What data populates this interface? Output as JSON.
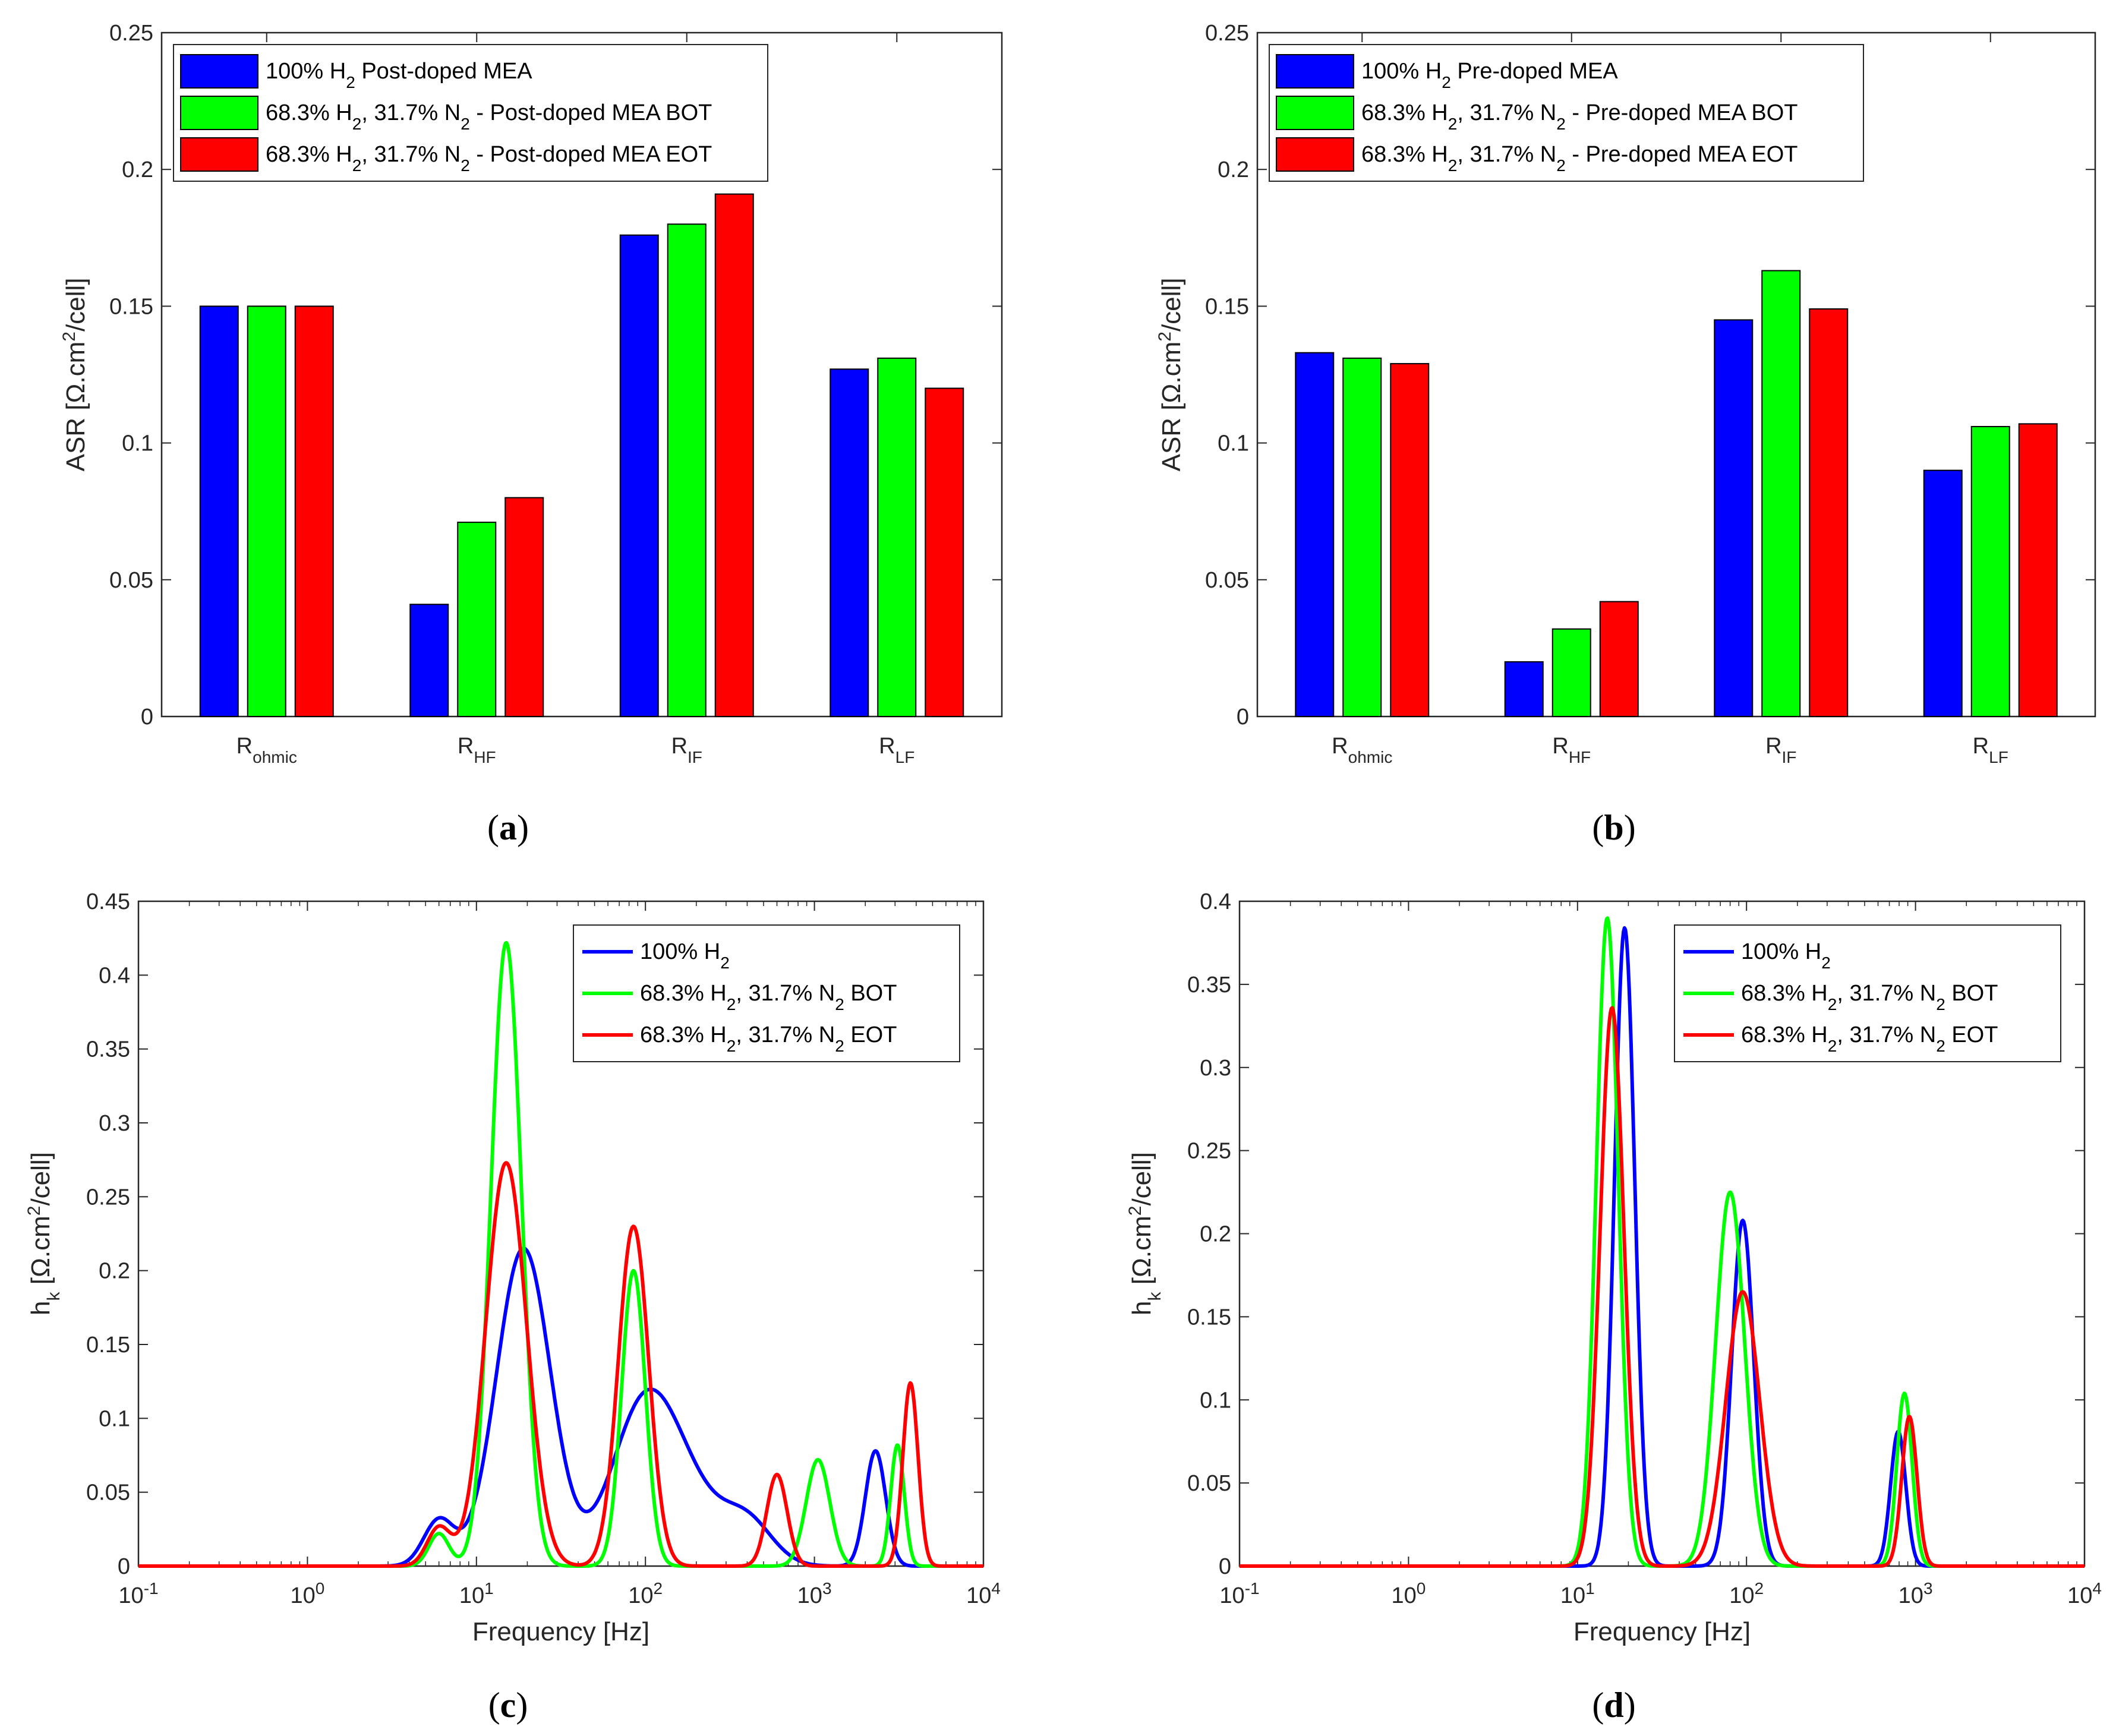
{
  "chart_data": [
    {
      "panel": "a",
      "caption": "(a)",
      "type": "bar",
      "ylabel": "ASR [Ω.cm²/cell]",
      "ylim": [
        0,
        0.25
      ],
      "yticks": [
        "0",
        "0.05",
        "0.1",
        "0.15",
        "0.2",
        "0.25"
      ],
      "categories": [
        {
          "base": "R",
          "sub": "ohmic"
        },
        {
          "base": "R",
          "sub": "HF"
        },
        {
          "base": "R",
          "sub": "IF"
        },
        {
          "base": "R",
          "sub": "LF"
        }
      ],
      "series": [
        {
          "name": "100% H2 Post-doped MEA",
          "label_parts": [
            "100% H",
            "2",
            " Post-doped MEA"
          ],
          "color": "#0000ff",
          "values": [
            0.15,
            0.041,
            0.176,
            0.127
          ]
        },
        {
          "name": "68.3% H2, 31.7% N2 - Post-doped MEA BOT",
          "label_parts": [
            "68.3% H",
            "2",
            ", 31.7% N",
            "2",
            " - Post-doped MEA BOT"
          ],
          "color": "#00ff00",
          "values": [
            0.15,
            0.071,
            0.18,
            0.131
          ]
        },
        {
          "name": "68.3% H2, 31.7% N2 - Post-doped MEA EOT",
          "label_parts": [
            "68.3% H",
            "2",
            ", 31.7% N",
            "2",
            " - Post-doped MEA EOT"
          ],
          "color": "#ff0000",
          "values": [
            0.15,
            0.08,
            0.191,
            0.12
          ]
        }
      ],
      "legend": "top-left"
    },
    {
      "panel": "b",
      "caption": "(b)",
      "type": "bar",
      "ylabel": "ASR [Ω.cm²/cell]",
      "ylim": [
        0,
        0.25
      ],
      "yticks": [
        "0",
        "0.05",
        "0.1",
        "0.15",
        "0.2",
        "0.25"
      ],
      "categories": [
        {
          "base": "R",
          "sub": "ohmic"
        },
        {
          "base": "R",
          "sub": "HF"
        },
        {
          "base": "R",
          "sub": "IF"
        },
        {
          "base": "R",
          "sub": "LF"
        }
      ],
      "series": [
        {
          "name": "100% H2 Pre-doped MEA",
          "label_parts": [
            "100% H",
            "2",
            " Pre-doped MEA"
          ],
          "color": "#0000ff",
          "values": [
            0.133,
            0.02,
            0.145,
            0.09
          ]
        },
        {
          "name": "68.3% H2, 31.7% N2 - Pre-doped MEA BOT",
          "label_parts": [
            "68.3% H",
            "2",
            ", 31.7% N",
            "2",
            " - Pre-doped MEA BOT"
          ],
          "color": "#00ff00",
          "values": [
            0.131,
            0.032,
            0.163,
            0.106
          ]
        },
        {
          "name": "68.3% H2, 31.7% N2 - Pre-doped MEA EOT",
          "label_parts": [
            "68.3% H",
            "2",
            ", 31.7% N",
            "2",
            " - Pre-doped MEA EOT"
          ],
          "color": "#ff0000",
          "values": [
            0.129,
            0.042,
            0.149,
            0.107
          ]
        }
      ],
      "legend": "top-left"
    },
    {
      "panel": "c",
      "caption": "(c)",
      "type": "line",
      "xscale": "log",
      "xlabel": "Frequency [Hz]",
      "ylabel": "h_k [Ω.cm²/cell]",
      "xlim": [
        0.1,
        10000
      ],
      "ylim": [
        0,
        0.45
      ],
      "xticks": [
        {
          "base": "10",
          "exp": "-1"
        },
        {
          "base": "10",
          "exp": "0"
        },
        {
          "base": "10",
          "exp": "1"
        },
        {
          "base": "10",
          "exp": "2"
        },
        {
          "base": "10",
          "exp": "3"
        },
        {
          "base": "10",
          "exp": "4"
        }
      ],
      "yticks": [
        "0",
        "0.05",
        "0.1",
        "0.15",
        "0.2",
        "0.25",
        "0.3",
        "0.35",
        "0.4",
        "0.45"
      ],
      "series": [
        {
          "name": "100% H2",
          "label_parts": [
            "100% H",
            "2"
          ],
          "color": "#0000ff",
          "peaks": [
            [
              6.0,
              0.031,
              0.09
            ],
            [
              19,
              0.215,
              0.16
            ],
            [
              95,
              0.096,
              0.19
            ],
            [
              170,
              0.045,
              0.2
            ],
            [
              400,
              0.029,
              0.15
            ],
            [
              2300,
              0.078,
              0.06
            ]
          ]
        },
        {
          "name": "68.3% H2, 31.7% N2 BOT",
          "label_parts": [
            "68.3% H",
            "2",
            ", 31.7% N",
            "2",
            " BOT"
          ],
          "color": "#00ff00",
          "peaks": [
            [
              6.0,
              0.022,
              0.06
            ],
            [
              15,
              0.422,
              0.09
            ],
            [
              85,
              0.2,
              0.07
            ],
            [
              1050,
              0.072,
              0.07
            ],
            [
              3100,
              0.082,
              0.04
            ]
          ]
        },
        {
          "name": "68.3% H2, 31.7% N2 EOT",
          "label_parts": [
            "68.3% H",
            "2",
            ", 31.7% N",
            "2",
            " EOT"
          ],
          "color": "#ff0000",
          "peaks": [
            [
              6.0,
              0.026,
              0.07
            ],
            [
              15,
              0.273,
              0.12
            ],
            [
              85,
              0.23,
              0.09
            ],
            [
              600,
              0.062,
              0.06
            ],
            [
              3700,
              0.124,
              0.045
            ]
          ]
        }
      ],
      "legend": "top-right"
    },
    {
      "panel": "d",
      "caption": "(d)",
      "type": "line",
      "xscale": "log",
      "xlabel": "Frequency [Hz]",
      "ylabel": "h_k [Ω.cm²/cell]",
      "xlim": [
        0.1,
        10000
      ],
      "ylim": [
        0,
        0.4
      ],
      "xticks": [
        {
          "base": "10",
          "exp": "-1"
        },
        {
          "base": "10",
          "exp": "0"
        },
        {
          "base": "10",
          "exp": "1"
        },
        {
          "base": "10",
          "exp": "2"
        },
        {
          "base": "10",
          "exp": "3"
        },
        {
          "base": "10",
          "exp": "4"
        }
      ],
      "yticks": [
        "0",
        "0.05",
        "0.1",
        "0.15",
        "0.2",
        "0.25",
        "0.3",
        "0.35",
        "0.4"
      ],
      "series": [
        {
          "name": "100% H2",
          "label_parts": [
            "100% H",
            "2"
          ],
          "color": "#0000ff",
          "peaks": [
            [
              19,
              0.384,
              0.06
            ],
            [
              95,
              0.208,
              0.065
            ],
            [
              790,
              0.081,
              0.045
            ]
          ]
        },
        {
          "name": "68.3% H2, 31.7% N2 BOT",
          "label_parts": [
            "68.3% H",
            "2",
            ", 31.7% N",
            "2",
            " BOT"
          ],
          "color": "#00ff00",
          "peaks": [
            [
              15,
              0.39,
              0.065
            ],
            [
              80,
              0.225,
              0.085
            ],
            [
              860,
              0.104,
              0.045
            ]
          ]
        },
        {
          "name": "68.3% H2, 31.7% N2 EOT",
          "label_parts": [
            "68.3% H",
            "2",
            ", 31.7% N",
            "2",
            " EOT"
          ],
          "color": "#ff0000",
          "peaks": [
            [
              16,
              0.336,
              0.07
            ],
            [
              95,
              0.165,
              0.1
            ],
            [
              920,
              0.09,
              0.045
            ]
          ]
        }
      ],
      "legend": "top-right"
    }
  ]
}
